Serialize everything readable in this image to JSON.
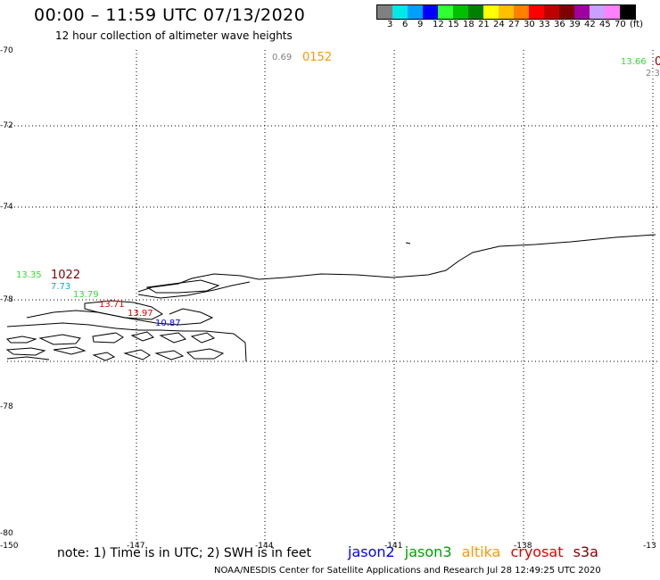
{
  "header": {
    "title": "00:00 – 11:59 UTC 07/13/2020",
    "subtitle": "12 hour collection of altimeter wave heights"
  },
  "legend": {
    "colors": [
      "#808080",
      "#00e8e8",
      "#00a0ff",
      "#0000ff",
      "#30ff30",
      "#00c000",
      "#008000",
      "#ffff00",
      "#ffc000",
      "#ff8000",
      "#ff0000",
      "#c00000",
      "#800000",
      "#a000a0",
      "#c8a0ff",
      "#ff80ff",
      "#000000"
    ],
    "labels": [
      "3",
      "6",
      "9",
      "12",
      "15",
      "18",
      "21",
      "24",
      "27",
      "30",
      "33",
      "36",
      "39",
      "42",
      "45",
      "70",
      "(ft)"
    ]
  },
  "axes": {
    "y_labels": [
      "-70",
      "-72",
      "-74",
      "-78",
      "-78",
      "-80"
    ],
    "x_labels": [
      "-150",
      "-147",
      "-144",
      "-141",
      "-138",
      "-13"
    ]
  },
  "observations": [
    {
      "text": "0.69",
      "color": "#808080"
    },
    {
      "text": "0152",
      "color": "#ff9900"
    },
    {
      "text": "13.66",
      "color": "#30e030"
    },
    {
      "text": "0",
      "color": "#800000"
    },
    {
      "text": "2.3",
      "color": "#808080"
    },
    {
      "text": "13.35",
      "color": "#30e030"
    },
    {
      "text": "1022",
      "color": "#800000"
    },
    {
      "text": "7.73",
      "color": "#00b0e0"
    },
    {
      "text": "13.79",
      "color": "#30e030"
    },
    {
      "text": "13.71",
      "color": "#e00000"
    },
    {
      "text": "13.97",
      "color": "#e00000"
    },
    {
      "text": "10.87",
      "color": "#0000ff"
    }
  ],
  "footer": {
    "note": "note: 1) Time is in UTC; 2) SWH is in feet",
    "satellites": [
      {
        "name": "jason2",
        "color": "#0000ff"
      },
      {
        "name": "jason3",
        "color": "#00a000"
      },
      {
        "name": "altika",
        "color": "#ff9900"
      },
      {
        "name": "cryosat",
        "color": "#e00000"
      },
      {
        "name": "s3a",
        "color": "#800000"
      }
    ],
    "credit": "NOAA/NESDIS Center for Satellite Applications and Research    Jul 28 12:49:25 UTC 2020"
  }
}
